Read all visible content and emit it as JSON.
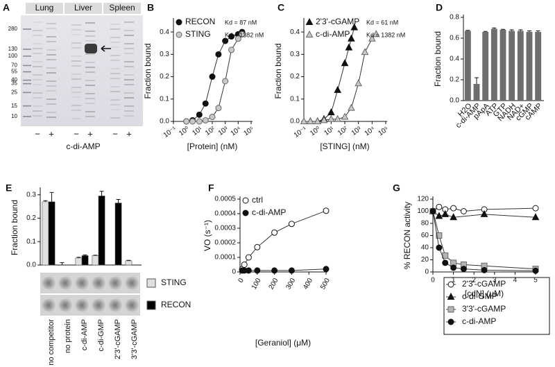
{
  "gel": {
    "label": "A",
    "lanes": [
      "Lung",
      "Liver",
      "Spleen"
    ],
    "markers": [
      280,
      130,
      100,
      70,
      55,
      40,
      35,
      25,
      15,
      10
    ],
    "signs": [
      "−",
      "+",
      "−",
      "+",
      "−",
      "+"
    ],
    "xlabel": "c-di-AMP"
  },
  "chart_data": [
    {
      "label": "B",
      "type": "line",
      "xlabel": "[Protein] (nM)",
      "ylabel": "Fraction bound",
      "xscale": "log",
      "xlim": [
        0.1,
        100000
      ],
      "xticks": [
        {
          "value": 0.1,
          "label": "10⁻¹"
        },
        {
          "value": 1,
          "label": "10⁰"
        },
        {
          "value": 10,
          "label": "10¹"
        },
        {
          "value": 100,
          "label": "10²"
        },
        {
          "value": 1000,
          "label": "10³"
        },
        {
          "value": 10000,
          "label": "10⁴"
        },
        {
          "value": 100000,
          "label": "10⁵"
        }
      ],
      "ylim": [
        0,
        0.45
      ],
      "yticks": [
        {
          "value": 0,
          "label": "0.0"
        },
        0.1,
        0.2,
        0.3,
        0.4
      ],
      "legend": "upper left",
      "series": [
        {
          "name": "RECON",
          "annotation": "Kd = 87 nM",
          "color": "#111111",
          "marker": "circle",
          "x": [
            1,
            3,
            10,
            30,
            100,
            300,
            1000,
            3000,
            10000,
            20000
          ],
          "values": [
            0,
            0.005,
            0.03,
            0.08,
            0.2,
            0.3,
            0.36,
            0.38,
            0.39,
            0.4
          ]
        },
        {
          "name": "STING",
          "annotation": "Kd = 1382 nM",
          "color": "#c8c8c8",
          "marker": "circle",
          "x": [
            1,
            3,
            10,
            30,
            100,
            300,
            1000,
            3000,
            10000,
            20000
          ],
          "values": [
            0,
            0,
            0,
            0.005,
            0.02,
            0.06,
            0.18,
            0.32,
            0.37,
            0.39
          ]
        }
      ]
    },
    {
      "label": "C",
      "type": "line",
      "xlabel": "[STING] (nM)",
      "ylabel": "Fraction bound",
      "xscale": "log",
      "xlim": [
        0.1,
        100000
      ],
      "xticks": [
        {
          "value": 0.1,
          "label": "10⁻¹"
        },
        {
          "value": 1,
          "label": "10⁰"
        },
        {
          "value": 10,
          "label": "10¹"
        },
        {
          "value": 100,
          "label": "10²"
        },
        {
          "value": 1000,
          "label": "10³"
        },
        {
          "value": 10000,
          "label": "10⁴"
        },
        {
          "value": 100000,
          "label": "10⁵"
        }
      ],
      "ylim": [
        0,
        0.45
      ],
      "yticks": [
        {
          "value": 0,
          "label": "0.0"
        },
        0.1,
        0.2,
        0.3,
        0.4
      ],
      "legend": "upper left",
      "series": [
        {
          "name": "2'3'-cGAMP",
          "annotation": "Kd = 61 nM",
          "color": "#111111",
          "marker": "triangle",
          "x": [
            0.3,
            1,
            3,
            10,
            30,
            100,
            200,
            300,
            500
          ],
          "values": [
            0,
            0,
            0.01,
            0.04,
            0.14,
            0.26,
            0.33,
            0.37,
            0.42
          ]
        },
        {
          "name": "c-di-AMP",
          "annotation": "Kd = 1382 nM",
          "color": "#c8c8c8",
          "marker": "triangle",
          "x": [
            0.1,
            0.3,
            1,
            3,
            10,
            30,
            100,
            300,
            1000,
            3000,
            10000,
            20000
          ],
          "values": [
            0,
            0,
            0,
            0.005,
            0.01,
            0.01,
            0.02,
            0.06,
            0.17,
            0.31,
            0.37,
            0.39
          ]
        }
      ]
    },
    {
      "label": "D",
      "type": "bar",
      "ylabel": "Fraction bound",
      "categories": [
        "H2O",
        "c-di-AMP",
        "pApA",
        "ATP",
        "GTP",
        "NADH",
        "NAD+",
        "cGMP",
        "cAMP"
      ],
      "values": [
        0.67,
        0.16,
        0.66,
        0.69,
        0.68,
        0.67,
        0.67,
        0.66,
        0.66
      ],
      "errors": [
        0.005,
        0.06,
        0.005,
        0.008,
        0.005,
        0.01,
        0.01,
        0.01,
        0.01
      ],
      "color": "#6e6e6e",
      "ylim": [
        0,
        0.8
      ],
      "yticks": [
        {
          "value": 0,
          "label": "0.0"
        },
        0.2,
        0.4,
        0.6,
        0.8
      ]
    },
    {
      "label": "E",
      "type": "grouped_bar",
      "ylabel": "Fraction bound",
      "categories": [
        "no competitor",
        "no protein",
        "c-di-AMP",
        "c-di-GMP",
        "2'3'-cGAMP",
        "3'3'-cGAMP"
      ],
      "ylim": [
        0,
        0.32
      ],
      "yticks": [
        {
          "value": 0,
          "label": "0.0"
        },
        0.1,
        0.2,
        0.3
      ],
      "legend": "right",
      "series": [
        {
          "name": "STING",
          "color": "#e0e0e0",
          "values": [
            0.27,
            0,
            0.03,
            0.04,
            0,
            0.018
          ],
          "errors": [
            0.005,
            0.01,
            0.003,
            0.002,
            0,
            0.002
          ]
        },
        {
          "name": "RECON",
          "color": "#000000",
          "values": [
            0.27,
            0,
            0.04,
            0.295,
            0.265,
            0
          ],
          "errors": [
            0.04,
            0,
            0.003,
            0.02,
            0.015,
            0
          ]
        }
      ]
    },
    {
      "label": "F",
      "type": "line",
      "xlabel": "[Geraniol] (μM)",
      "ylabel": "VO (s⁻¹)",
      "xlim": [
        0,
        500
      ],
      "xticks": [
        0,
        100,
        200,
        300,
        400,
        500
      ],
      "ylim": [
        0,
        0.0005
      ],
      "yticks": [
        0,
        0.0001,
        0.0002,
        0.0003,
        0.0004,
        0.0005
      ],
      "legend": "upper left",
      "series": [
        {
          "name": "ctrl",
          "color": "#ffffff",
          "marker": "circle",
          "x": [
            12.5,
            25,
            50,
            100,
            200,
            300,
            500
          ],
          "values": [
            2e-05,
            5e-05,
            0.0001,
            0.00017,
            0.00027,
            0.00033,
            0.00042
          ]
        },
        {
          "name": "c-di-AMP",
          "color": "#111111",
          "marker": "circle",
          "x": [
            12.5,
            25,
            50,
            100,
            200,
            300,
            500
          ],
          "values": [
            1e-05,
            1e-05,
            1e-05,
            1e-05,
            1e-05,
            1e-05,
            2e-05
          ]
        }
      ]
    },
    {
      "label": "G",
      "type": "line",
      "xlabel": "[cdN] (μM)",
      "ylabel": "% RECON activity",
      "xlim": [
        0,
        5
      ],
      "xticks": [
        0,
        1,
        2,
        3,
        4,
        5
      ],
      "ylim": [
        0,
        120
      ],
      "yticks": [
        0,
        20,
        40,
        60,
        80,
        100,
        120
      ],
      "legend": "lower right",
      "series": [
        {
          "name": "2'3'-cGAMP",
          "color": "#ffffff",
          "marker": "circle",
          "x": [
            0,
            0.3,
            0.6,
            1,
            1.5,
            2.5,
            5
          ],
          "values": [
            100,
            107,
            103,
            105,
            100,
            103,
            105
          ]
        },
        {
          "name": "c-di-GMP",
          "color": "#111111",
          "marker": "triangle",
          "x": [
            0,
            0.3,
            0.6,
            1,
            2.5,
            5
          ],
          "values": [
            100,
            92,
            95,
            90,
            95,
            90
          ]
        },
        {
          "name": "3'3'-cGAMP",
          "color": "#b4b4b4",
          "marker": "square",
          "x": [
            0,
            0.3,
            0.6,
            1,
            1.5,
            2.5,
            5
          ],
          "values": [
            100,
            60,
            27,
            15,
            12,
            10,
            5
          ]
        },
        {
          "name": "c-di-AMP",
          "color": "#111111",
          "marker": "circle",
          "x": [
            0,
            0.3,
            0.6,
            1,
            1.5,
            2.5,
            5
          ],
          "values": [
            100,
            40,
            15,
            7,
            5,
            3,
            2
          ]
        }
      ]
    }
  ]
}
